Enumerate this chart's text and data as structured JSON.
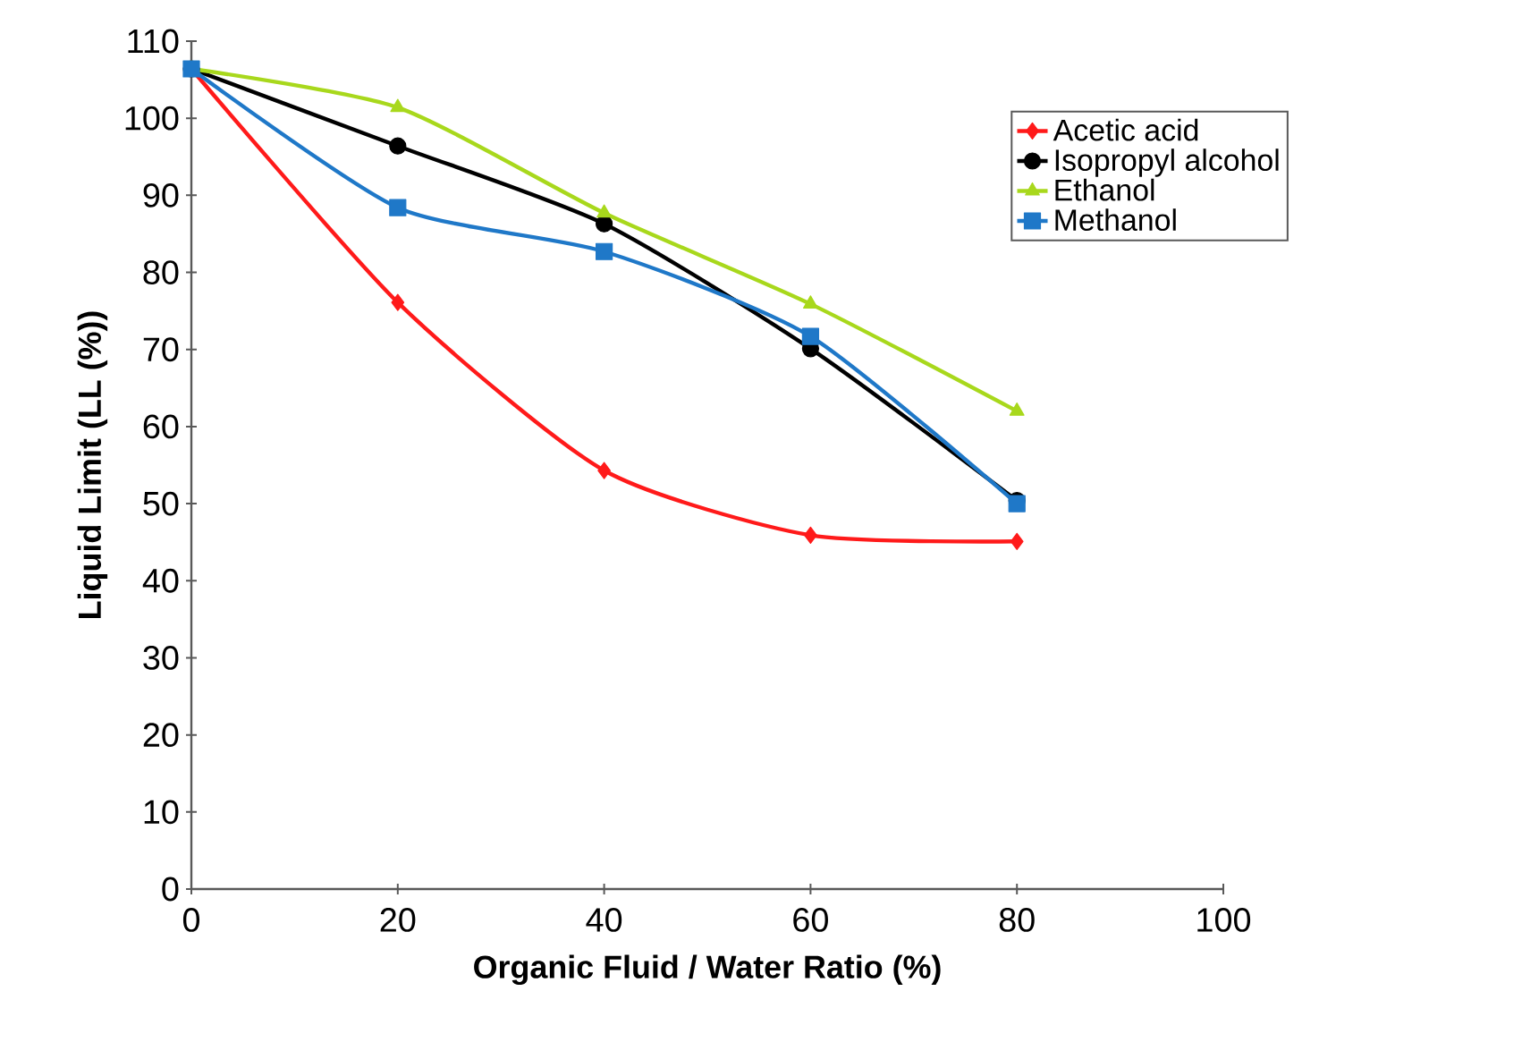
{
  "chart_data": {
    "type": "line",
    "xlabel": "Organic Fluid / Water Ratio (%)",
    "ylabel": "Liquid Limit (LL (%))",
    "x": [
      0,
      20,
      40,
      60,
      80
    ],
    "series": [
      {
        "name": "Acetic acid",
        "color": "#ff1a1a",
        "marker": "diamond",
        "values": [
          106.4,
          76.1,
          54.3,
          45.9,
          45.1
        ]
      },
      {
        "name": "Isopropyl alcohol",
        "color": "#000000",
        "marker": "circle",
        "values": [
          106.4,
          96.4,
          86.3,
          70.1,
          50.4
        ]
      },
      {
        "name": "Ethanol",
        "color": "#a8d81c",
        "marker": "triangle",
        "values": [
          106.4,
          101.4,
          87.7,
          75.9,
          62.0
        ]
      },
      {
        "name": "Methanol",
        "color": "#1f78c8",
        "marker": "square",
        "values": [
          106.4,
          88.4,
          82.7,
          71.7,
          50.0
        ]
      }
    ],
    "xlim": [
      0,
      100
    ],
    "xticks": [
      0,
      20,
      40,
      60,
      80,
      100
    ],
    "ylim": [
      0,
      110
    ],
    "yticks": [
      0,
      10,
      20,
      30,
      40,
      50,
      60,
      70,
      80,
      90,
      100,
      110
    ],
    "grid": false,
    "legend": "top right",
    "line_style": "solid"
  }
}
